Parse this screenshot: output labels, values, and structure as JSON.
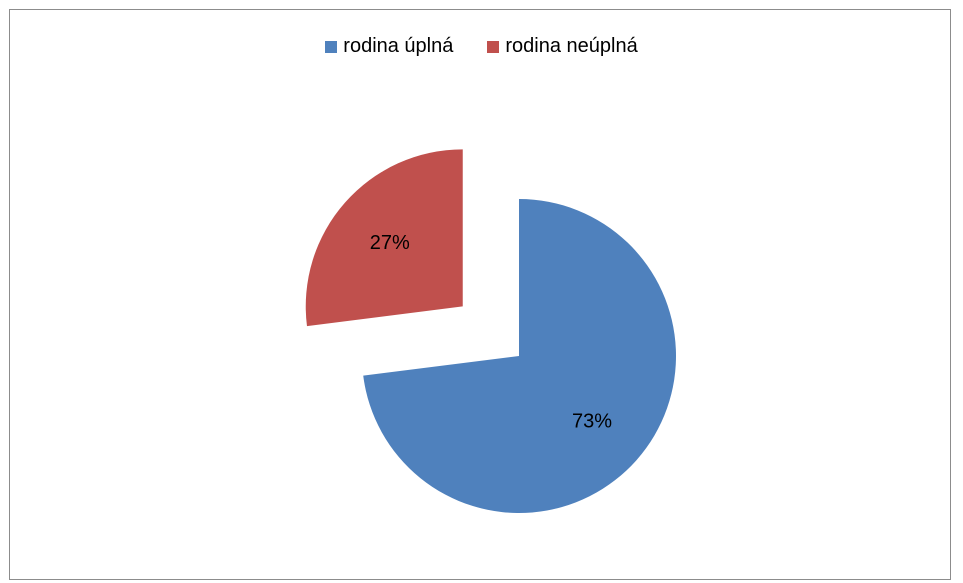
{
  "chart_data": {
    "type": "pie",
    "categories": [
      "rodina úplná",
      "rodina neúplná"
    ],
    "values": [
      73,
      27
    ],
    "value_labels": [
      "73%",
      "27%"
    ],
    "colors": [
      "#4f81bd",
      "#c0504d"
    ],
    "exploded": [
      false,
      true
    ],
    "legend_position": "top"
  }
}
